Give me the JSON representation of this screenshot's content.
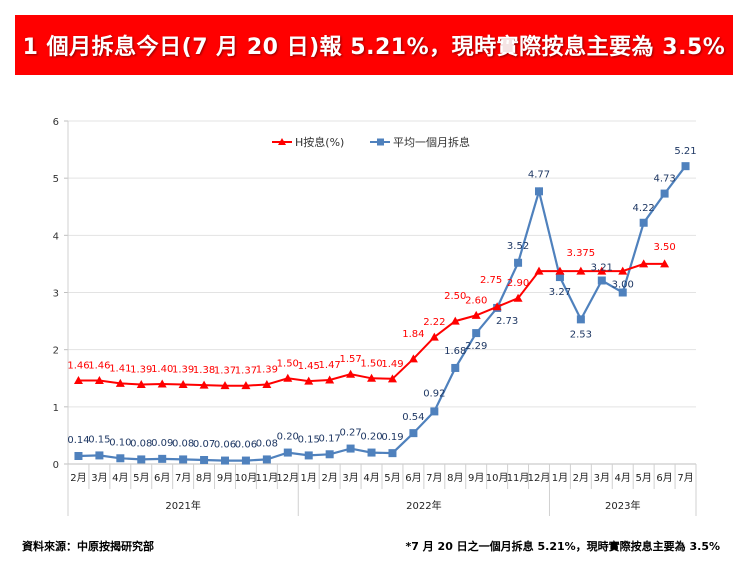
{
  "banner": {
    "title": "1 個月拆息今日(7 月 20 日)報 5.21%，現時實際按息主要為 3.5%"
  },
  "footer": {
    "source": "資料來源：中原按揭研究部",
    "note": "*7 月 20 日之一個月拆息 5.21%，現時實際按息主要為 3.5%"
  },
  "colors": {
    "banner": "#ff0000",
    "h_rate": "#ff0000",
    "hibor": "#4f81bd",
    "hibor_label": "#1f3864"
  },
  "chart_data": {
    "type": "line",
    "title": "",
    "xlabel": "",
    "ylabel": "",
    "ylim": [
      0,
      6
    ],
    "yticks": [
      "0",
      "1",
      "2",
      "3",
      "4",
      "5",
      "6"
    ],
    "grid": true,
    "legend_position": "top-center",
    "categories": [
      "2月",
      "3月",
      "4月",
      "5月",
      "6月",
      "7月",
      "8月",
      "9月",
      "10月",
      "11月",
      "12月",
      "1月",
      "2月",
      "3月",
      "4月",
      "5月",
      "6月",
      "7月",
      "8月",
      "9月",
      "10月",
      "11月",
      "12月",
      "1月",
      "2月",
      "3月",
      "4月",
      "5月",
      "6月",
      "7月"
    ],
    "year_groups": [
      {
        "label": "2021年",
        "count": 11
      },
      {
        "label": "2022年",
        "count": 12
      },
      {
        "label": "2023年",
        "count": 7
      }
    ],
    "series": [
      {
        "name": "H按息(%)",
        "marker": "triangle",
        "values": [
          1.46,
          1.46,
          1.41,
          1.39,
          1.4,
          1.39,
          1.38,
          1.37,
          1.37,
          1.39,
          1.5,
          1.45,
          1.47,
          1.57,
          1.5,
          1.49,
          1.84,
          2.22,
          2.5,
          2.6,
          2.75,
          2.9,
          3.375,
          3.375,
          3.375,
          3.375,
          3.375,
          3.5,
          3.5,
          null
        ],
        "labels": [
          "1.46",
          "1.46",
          "1.41",
          "1.39",
          "1.40",
          "1.39",
          "1.38",
          "1.37",
          "1.37",
          "1.39",
          "1.50",
          "1.45",
          "1.47",
          "1.57",
          "1.50",
          "1.49",
          "1.84",
          "2.22",
          "2.50",
          "2.60",
          "2.75",
          "2.90",
          "",
          "",
          "3.375",
          "",
          "",
          "",
          "3.50",
          ""
        ]
      },
      {
        "name": "平均一個月拆息",
        "marker": "square",
        "values": [
          0.14,
          0.15,
          0.1,
          0.08,
          0.09,
          0.08,
          0.07,
          0.06,
          0.06,
          0.08,
          0.2,
          0.15,
          0.17,
          0.27,
          0.2,
          0.19,
          0.54,
          0.92,
          1.68,
          2.29,
          2.73,
          3.52,
          4.77,
          3.27,
          2.53,
          3.21,
          3.0,
          4.22,
          4.73,
          5.21
        ],
        "labels": [
          "0.14",
          "0.15",
          "0.10",
          "0.08",
          "0.09",
          "0.08",
          "0.07",
          "0.06",
          "0.06",
          "0.08",
          "0.20",
          "0.15",
          "0.17",
          "0.27",
          "0.20",
          "0.19",
          "0.54",
          "0.92",
          "1.68",
          "2.29",
          "2.73",
          "3.52",
          "4.77",
          "3.27",
          "2.53",
          "3.21",
          "3.00",
          "4.22",
          "4.73",
          "5.21"
        ]
      }
    ]
  }
}
